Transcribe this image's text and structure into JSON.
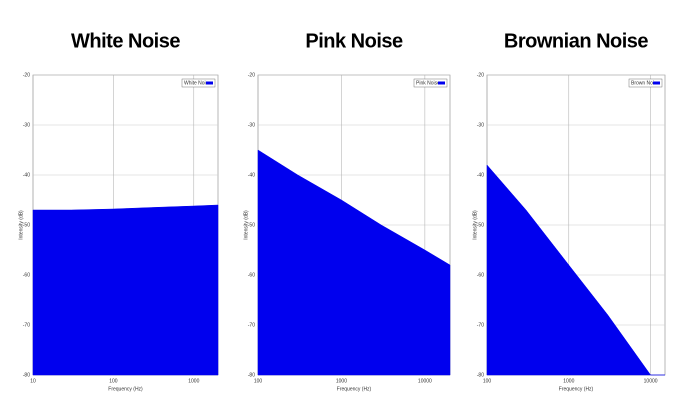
{
  "chart_data": [
    {
      "type": "area",
      "title": "White Noise",
      "xlabel": "Frequency (Hz)",
      "ylabel": "Intensity (dB)",
      "log_x": true,
      "grid": true,
      "legend": "upper right",
      "xlim": [
        10,
        2000
      ],
      "xticks": [
        10,
        100,
        1000
      ],
      "ylim": [
        -80,
        -20
      ],
      "yticks": [
        -80,
        -70,
        -60,
        -50,
        -40,
        -30,
        -20
      ],
      "series": [
        {
          "name": "White Noise",
          "color": "#0000ee",
          "x": [
            10,
            30,
            100,
            300,
            1000,
            2000
          ],
          "values": [
            -47,
            -47,
            -46.8,
            -46.5,
            -46.2,
            -46
          ]
        }
      ]
    },
    {
      "type": "area",
      "title": "Pink Noise",
      "xlabel": "Frequency (Hz)",
      "ylabel": "Intensity (dB)",
      "log_x": true,
      "grid": true,
      "legend": "upper right",
      "xlim": [
        100,
        20000
      ],
      "xticks": [
        100,
        1000,
        10000
      ],
      "ylim": [
        -80,
        -20
      ],
      "yticks": [
        -80,
        -70,
        -60,
        -50,
        -40,
        -30,
        -20
      ],
      "series": [
        {
          "name": "Pink Noise",
          "color": "#0000ee",
          "x": [
            100,
            300,
            1000,
            3000,
            10000,
            20000
          ],
          "values": [
            -35,
            -40,
            -45,
            -50,
            -55,
            -58
          ]
        }
      ]
    },
    {
      "type": "area",
      "title": "Brownian Noise",
      "xlabel": "Frequency (Hz)",
      "ylabel": "Intensity (dB)",
      "log_x": true,
      "grid": true,
      "legend": "upper right",
      "xlim": [
        100,
        15000
      ],
      "xticks": [
        100,
        1000,
        10000
      ],
      "ylim": [
        -80,
        -20
      ],
      "yticks": [
        -80,
        -70,
        -60,
        -50,
        -40,
        -30,
        -20
      ],
      "series": [
        {
          "name": "Brown Noise",
          "color": "#0000ee",
          "x": [
            100,
            300,
            1000,
            3000,
            10000,
            15000
          ],
          "values": [
            -38,
            -47,
            -58,
            -68,
            -80,
            -80
          ]
        }
      ]
    }
  ]
}
